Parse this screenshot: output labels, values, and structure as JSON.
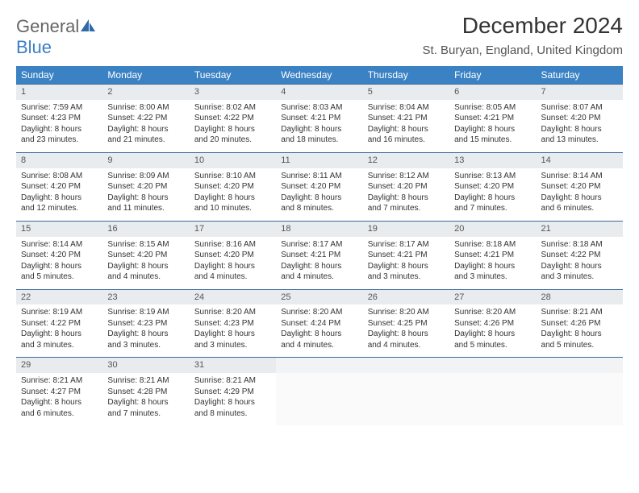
{
  "brand": {
    "part1": "General",
    "part2": "Blue"
  },
  "title": "December 2024",
  "location": "St. Buryan, England, United Kingdom",
  "header_bg": "#3b82c4",
  "header_text": "#ffffff",
  "daynum_bg": "#e9ecef",
  "border_color": "#3b6a9e",
  "days_of_week": [
    "Sunday",
    "Monday",
    "Tuesday",
    "Wednesday",
    "Thursday",
    "Friday",
    "Saturday"
  ],
  "weeks": [
    [
      {
        "n": "1",
        "sr": "Sunrise: 7:59 AM",
        "ss": "Sunset: 4:23 PM",
        "d1": "Daylight: 8 hours",
        "d2": "and 23 minutes."
      },
      {
        "n": "2",
        "sr": "Sunrise: 8:00 AM",
        "ss": "Sunset: 4:22 PM",
        "d1": "Daylight: 8 hours",
        "d2": "and 21 minutes."
      },
      {
        "n": "3",
        "sr": "Sunrise: 8:02 AM",
        "ss": "Sunset: 4:22 PM",
        "d1": "Daylight: 8 hours",
        "d2": "and 20 minutes."
      },
      {
        "n": "4",
        "sr": "Sunrise: 8:03 AM",
        "ss": "Sunset: 4:21 PM",
        "d1": "Daylight: 8 hours",
        "d2": "and 18 minutes."
      },
      {
        "n": "5",
        "sr": "Sunrise: 8:04 AM",
        "ss": "Sunset: 4:21 PM",
        "d1": "Daylight: 8 hours",
        "d2": "and 16 minutes."
      },
      {
        "n": "6",
        "sr": "Sunrise: 8:05 AM",
        "ss": "Sunset: 4:21 PM",
        "d1": "Daylight: 8 hours",
        "d2": "and 15 minutes."
      },
      {
        "n": "7",
        "sr": "Sunrise: 8:07 AM",
        "ss": "Sunset: 4:20 PM",
        "d1": "Daylight: 8 hours",
        "d2": "and 13 minutes."
      }
    ],
    [
      {
        "n": "8",
        "sr": "Sunrise: 8:08 AM",
        "ss": "Sunset: 4:20 PM",
        "d1": "Daylight: 8 hours",
        "d2": "and 12 minutes."
      },
      {
        "n": "9",
        "sr": "Sunrise: 8:09 AM",
        "ss": "Sunset: 4:20 PM",
        "d1": "Daylight: 8 hours",
        "d2": "and 11 minutes."
      },
      {
        "n": "10",
        "sr": "Sunrise: 8:10 AM",
        "ss": "Sunset: 4:20 PM",
        "d1": "Daylight: 8 hours",
        "d2": "and 10 minutes."
      },
      {
        "n": "11",
        "sr": "Sunrise: 8:11 AM",
        "ss": "Sunset: 4:20 PM",
        "d1": "Daylight: 8 hours",
        "d2": "and 8 minutes."
      },
      {
        "n": "12",
        "sr": "Sunrise: 8:12 AM",
        "ss": "Sunset: 4:20 PM",
        "d1": "Daylight: 8 hours",
        "d2": "and 7 minutes."
      },
      {
        "n": "13",
        "sr": "Sunrise: 8:13 AM",
        "ss": "Sunset: 4:20 PM",
        "d1": "Daylight: 8 hours",
        "d2": "and 7 minutes."
      },
      {
        "n": "14",
        "sr": "Sunrise: 8:14 AM",
        "ss": "Sunset: 4:20 PM",
        "d1": "Daylight: 8 hours",
        "d2": "and 6 minutes."
      }
    ],
    [
      {
        "n": "15",
        "sr": "Sunrise: 8:14 AM",
        "ss": "Sunset: 4:20 PM",
        "d1": "Daylight: 8 hours",
        "d2": "and 5 minutes."
      },
      {
        "n": "16",
        "sr": "Sunrise: 8:15 AM",
        "ss": "Sunset: 4:20 PM",
        "d1": "Daylight: 8 hours",
        "d2": "and 4 minutes."
      },
      {
        "n": "17",
        "sr": "Sunrise: 8:16 AM",
        "ss": "Sunset: 4:20 PM",
        "d1": "Daylight: 8 hours",
        "d2": "and 4 minutes."
      },
      {
        "n": "18",
        "sr": "Sunrise: 8:17 AM",
        "ss": "Sunset: 4:21 PM",
        "d1": "Daylight: 8 hours",
        "d2": "and 4 minutes."
      },
      {
        "n": "19",
        "sr": "Sunrise: 8:17 AM",
        "ss": "Sunset: 4:21 PM",
        "d1": "Daylight: 8 hours",
        "d2": "and 3 minutes."
      },
      {
        "n": "20",
        "sr": "Sunrise: 8:18 AM",
        "ss": "Sunset: 4:21 PM",
        "d1": "Daylight: 8 hours",
        "d2": "and 3 minutes."
      },
      {
        "n": "21",
        "sr": "Sunrise: 8:18 AM",
        "ss": "Sunset: 4:22 PM",
        "d1": "Daylight: 8 hours",
        "d2": "and 3 minutes."
      }
    ],
    [
      {
        "n": "22",
        "sr": "Sunrise: 8:19 AM",
        "ss": "Sunset: 4:22 PM",
        "d1": "Daylight: 8 hours",
        "d2": "and 3 minutes."
      },
      {
        "n": "23",
        "sr": "Sunrise: 8:19 AM",
        "ss": "Sunset: 4:23 PM",
        "d1": "Daylight: 8 hours",
        "d2": "and 3 minutes."
      },
      {
        "n": "24",
        "sr": "Sunrise: 8:20 AM",
        "ss": "Sunset: 4:23 PM",
        "d1": "Daylight: 8 hours",
        "d2": "and 3 minutes."
      },
      {
        "n": "25",
        "sr": "Sunrise: 8:20 AM",
        "ss": "Sunset: 4:24 PM",
        "d1": "Daylight: 8 hours",
        "d2": "and 4 minutes."
      },
      {
        "n": "26",
        "sr": "Sunrise: 8:20 AM",
        "ss": "Sunset: 4:25 PM",
        "d1": "Daylight: 8 hours",
        "d2": "and 4 minutes."
      },
      {
        "n": "27",
        "sr": "Sunrise: 8:20 AM",
        "ss": "Sunset: 4:26 PM",
        "d1": "Daylight: 8 hours",
        "d2": "and 5 minutes."
      },
      {
        "n": "28",
        "sr": "Sunrise: 8:21 AM",
        "ss": "Sunset: 4:26 PM",
        "d1": "Daylight: 8 hours",
        "d2": "and 5 minutes."
      }
    ],
    [
      {
        "n": "29",
        "sr": "Sunrise: 8:21 AM",
        "ss": "Sunset: 4:27 PM",
        "d1": "Daylight: 8 hours",
        "d2": "and 6 minutes."
      },
      {
        "n": "30",
        "sr": "Sunrise: 8:21 AM",
        "ss": "Sunset: 4:28 PM",
        "d1": "Daylight: 8 hours",
        "d2": "and 7 minutes."
      },
      {
        "n": "31",
        "sr": "Sunrise: 8:21 AM",
        "ss": "Sunset: 4:29 PM",
        "d1": "Daylight: 8 hours",
        "d2": "and 8 minutes."
      },
      null,
      null,
      null,
      null
    ]
  ]
}
